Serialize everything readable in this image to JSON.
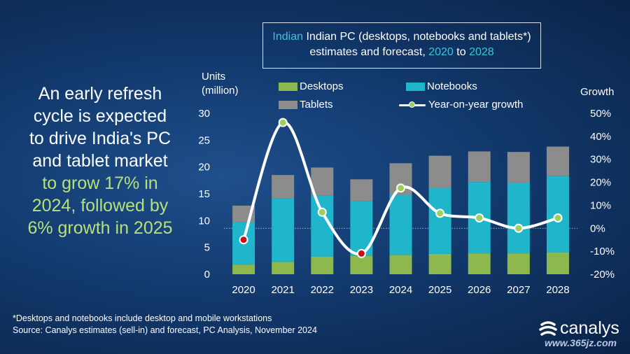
{
  "headline": {
    "lines": [
      "An early refresh",
      "cycle is expected",
      "to drive India's PC",
      "and tablet market"
    ],
    "highlight_lines": [
      "to grow 17% in",
      "2024, followed by",
      "6% growth in 2025"
    ]
  },
  "title_box": {
    "part1": "Indian PC (desktops, notebooks and tablets*)",
    "part2": "estimates and forecast,",
    "year_start": "2020",
    "to": "to",
    "year_end": "2028"
  },
  "footnote": {
    "line1": "*Desktops and notebooks include desktop and mobile workstations",
    "line2": "Source: Canalys estimates (sell-in) and forecast, PC Analysis, November 2024"
  },
  "logo": {
    "text": "canalys"
  },
  "watermark": {
    "text": "www.365jz.com"
  },
  "colors": {
    "desktops": "#8cb84d",
    "notebooks": "#1fb6cc",
    "tablets": "#8c8c8c",
    "growth_line": "#ffffff",
    "growth_marker": "#9ccf5f",
    "growth_marker_negative": "#c0141a",
    "accent": "#3fc2da"
  },
  "chart_data": {
    "type": "bar",
    "stacked": true,
    "categories": [
      "2020",
      "2021",
      "2022",
      "2023",
      "2024",
      "2025",
      "2026",
      "2027",
      "2028"
    ],
    "ylabel": "Units\n(million)",
    "ylabel_lines": [
      "Units",
      "(million)"
    ],
    "ylim": [
      0,
      30
    ],
    "yticks": [
      0,
      5,
      10,
      15,
      20,
      25,
      30
    ],
    "y2label": "Growth",
    "y2lim": [
      -20,
      50
    ],
    "y2ticks": [
      "-20%",
      "-10%",
      "0%",
      "10%",
      "20%",
      "30%",
      "40%",
      "50%"
    ],
    "y2tick_values": [
      -20,
      -10,
      0,
      10,
      20,
      30,
      40,
      50
    ],
    "series": [
      {
        "name": "Desktops",
        "values": [
          1.8,
          2.3,
          3.3,
          3.4,
          3.6,
          3.8,
          3.9,
          3.9,
          4.1
        ]
      },
      {
        "name": "Notebooks",
        "values": [
          7.9,
          11.9,
          11.4,
          10.2,
          11.2,
          12.3,
          13.3,
          13.2,
          14.2
        ]
      },
      {
        "name": "Tablets",
        "values": [
          3.1,
          4.3,
          5.2,
          4.1,
          5.9,
          6.0,
          5.7,
          5.7,
          5.5
        ]
      },
      {
        "name": "Year-on-year growth",
        "axis": "secondary",
        "type": "line",
        "values": [
          -5,
          46,
          7,
          -11,
          17.5,
          6.5,
          4.5,
          0,
          4.5
        ]
      }
    ],
    "legend_placement": "top",
    "grid": false
  }
}
